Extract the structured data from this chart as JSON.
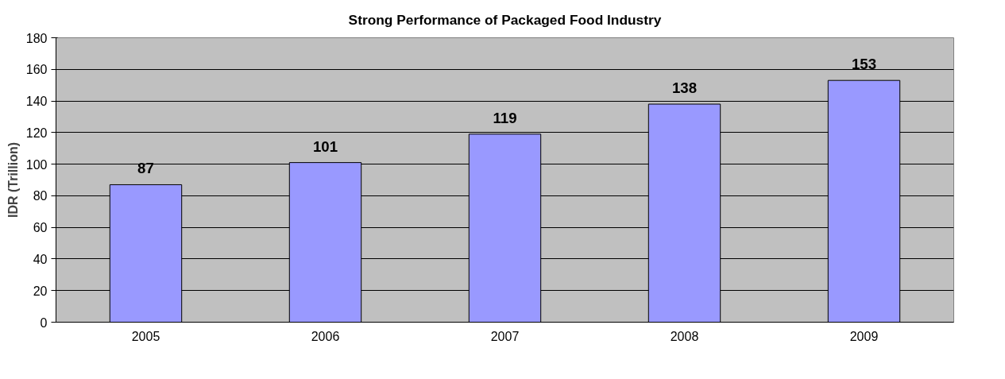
{
  "chart_data": {
    "type": "bar",
    "title": "Strong Performance of Packaged Food Industry",
    "ylabel": "IDR (Trillion)",
    "categories": [
      "2005",
      "2006",
      "2007",
      "2008",
      "2009"
    ],
    "values": [
      87,
      101,
      119,
      138,
      153
    ],
    "color": "#9999ff",
    "ylim": [
      0,
      180
    ],
    "yticks": [
      0,
      20,
      40,
      60,
      80,
      100,
      120,
      140,
      160,
      180
    ],
    "grid": "y",
    "data_labels": true
  }
}
